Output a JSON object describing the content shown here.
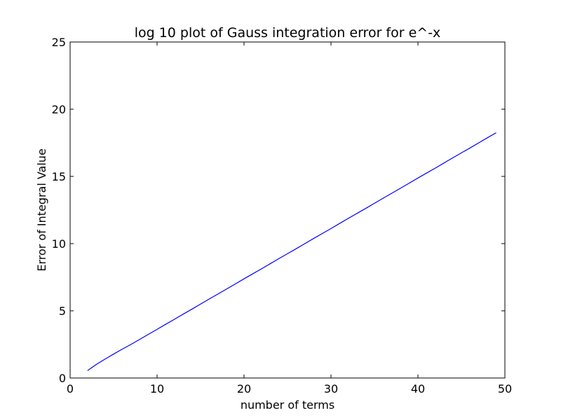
{
  "chart_data": {
    "type": "line",
    "title": "log 10 plot of Gauss integration error for e^-x",
    "xlabel": "number of terms",
    "ylabel": "Error of Integral Value",
    "xlim": [
      0,
      50
    ],
    "ylim": [
      0,
      25
    ],
    "xticks": [
      0,
      10,
      20,
      30,
      40,
      50
    ],
    "yticks": [
      0,
      5,
      10,
      15,
      20,
      25
    ],
    "grid": false,
    "series": [
      {
        "color": "#0000ff",
        "x": [
          2,
          3,
          4,
          5,
          6,
          7,
          8,
          9,
          10,
          11,
          12,
          13,
          14,
          15,
          16,
          17,
          18,
          19,
          20,
          21,
          22,
          23,
          24,
          25,
          26,
          27,
          28,
          29,
          30,
          31,
          32,
          33,
          34,
          35,
          36,
          37,
          38,
          39,
          40,
          41,
          42,
          43,
          44,
          45,
          46,
          47,
          48,
          49
        ],
        "y": [
          0.55,
          1.0,
          1.4,
          1.78,
          2.15,
          2.5,
          2.87,
          3.25,
          3.62,
          4.0,
          4.37,
          4.75,
          5.12,
          5.5,
          5.88,
          6.25,
          6.62,
          7.0,
          7.38,
          7.75,
          8.12,
          8.5,
          8.88,
          9.25,
          9.62,
          10.0,
          10.38,
          10.75,
          11.12,
          11.5,
          11.88,
          12.25,
          12.62,
          13.0,
          13.38,
          13.75,
          14.12,
          14.5,
          14.88,
          15.25,
          15.62,
          16.0,
          16.38,
          16.75,
          17.12,
          17.5,
          17.88,
          18.25
        ]
      }
    ]
  }
}
